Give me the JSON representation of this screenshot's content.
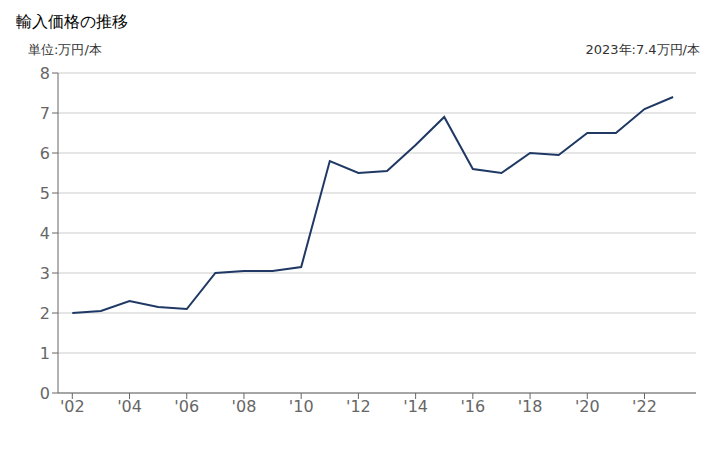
{
  "chart_data": {
    "type": "line",
    "title": "輸入価格の推移",
    "ylabel": "単位:万円/本",
    "annotation": "2023年:7.4万円/本",
    "x": [
      2002,
      2003,
      2004,
      2005,
      2006,
      2007,
      2008,
      2009,
      2010,
      2011,
      2012,
      2013,
      2014,
      2015,
      2016,
      2017,
      2018,
      2019,
      2020,
      2021,
      2022,
      2023
    ],
    "values": [
      2.0,
      2.05,
      2.3,
      2.15,
      2.1,
      3.0,
      3.05,
      3.05,
      3.15,
      5.8,
      5.5,
      5.55,
      6.2,
      6.9,
      5.6,
      5.5,
      6.0,
      5.95,
      6.5,
      6.5,
      7.1,
      7.4
    ],
    "color": "#1f3864",
    "xlim": [
      2001.5,
      2023.8
    ],
    "xticks": [
      {
        "value": 2002,
        "label": "'02"
      },
      {
        "value": 2004,
        "label": "'04"
      },
      {
        "value": 2006,
        "label": "'06"
      },
      {
        "value": 2008,
        "label": "'08"
      },
      {
        "value": 2010,
        "label": "'10"
      },
      {
        "value": 2012,
        "label": "'12"
      },
      {
        "value": 2014,
        "label": "'14"
      },
      {
        "value": 2016,
        "label": "'16"
      },
      {
        "value": 2018,
        "label": "'18"
      },
      {
        "value": 2020,
        "label": "'20"
      },
      {
        "value": 2022,
        "label": "'22"
      }
    ],
    "ylim": [
      0,
      8
    ],
    "yticks": [
      0,
      1,
      2,
      3,
      4,
      5,
      6,
      7,
      8
    ],
    "grid": "y"
  }
}
